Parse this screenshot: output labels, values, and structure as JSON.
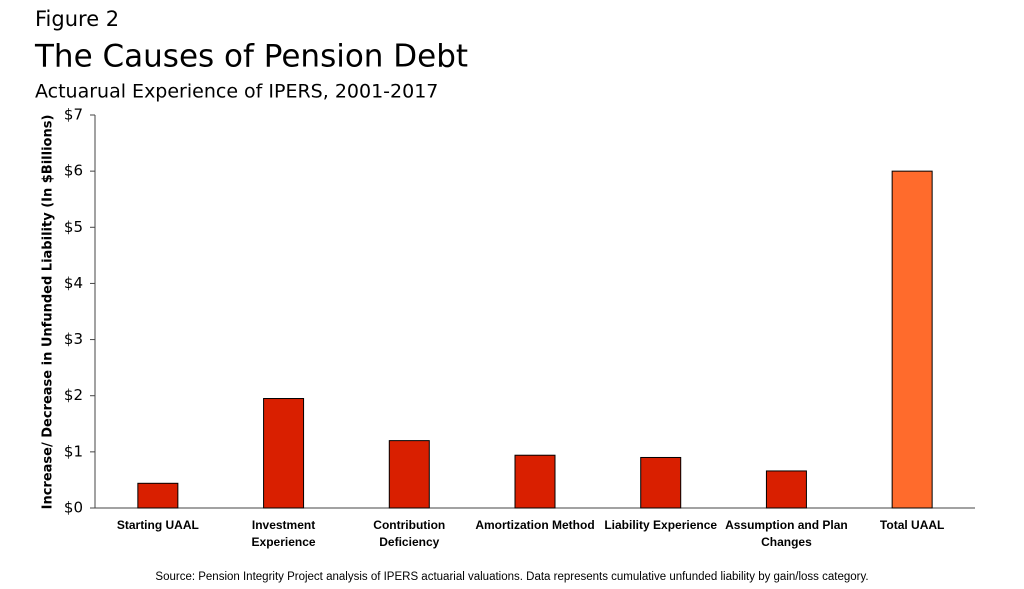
{
  "chart_data": {
    "type": "bar",
    "figure_label": "Figure 2",
    "title": "The Causes of Pension Debt",
    "subtitle": "Actuarual Experience of IPERS, 2001-2017",
    "y_label": "Increase/ Decrease in Unfunded Liability (In $Billions)",
    "source": "Source: Pension Integrity Project analysis of IPERS actuarial valuations. Data represents cumulative unfunded liability by gain/loss category.",
    "categories": [
      "Starting UAAL",
      "Investment Experience",
      "Contribution Deficiency",
      "Amortization Method",
      "Liability Experience",
      "Assumption and Plan Changes",
      "Total UAAL"
    ],
    "values": [
      0.44,
      1.95,
      1.2,
      0.94,
      0.9,
      0.66,
      6.0
    ],
    "colors": [
      "#d91f00",
      "#d91f00",
      "#d91f00",
      "#d91f00",
      "#d91f00",
      "#d91f00",
      "#ff6b2c"
    ],
    "ylim": [
      0,
      7
    ],
    "yticks": [
      {
        "value": 0,
        "label": "$0"
      },
      {
        "value": 1,
        "label": "$1"
      },
      {
        "value": 2,
        "label": "$2"
      },
      {
        "value": 3,
        "label": "$3"
      },
      {
        "value": 4,
        "label": "$4"
      },
      {
        "value": 5,
        "label": "$5"
      },
      {
        "value": 6,
        "label": "$6"
      },
      {
        "value": 7,
        "label": "$7"
      }
    ],
    "grid": false
  }
}
